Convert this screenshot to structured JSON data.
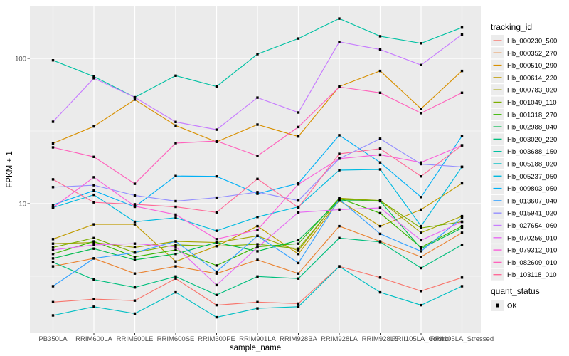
{
  "chart_data": {
    "type": "line",
    "title": "",
    "xlabel": "sample_name",
    "ylabel": "FPKM + 1",
    "y_scale": "log10",
    "ylim": [
      1.3,
      220
    ],
    "y_tick_labels": [
      "100",
      "10"
    ],
    "y_tick_values": [
      100,
      10
    ],
    "y_minor_gridlines": [
      31.623,
      3.1623
    ],
    "grid": true,
    "legend_position": "right",
    "panel_bg": "#EBEBEB",
    "grid_color": "#FFFFFF",
    "point_color": "#000000",
    "point_shape": "square",
    "legend": {
      "title": "tracking_id",
      "quant_title": "quant_status",
      "quant_items": [
        "OK"
      ]
    },
    "categories": [
      "PB350LA",
      "RRIM600LA",
      "RRIM600LE",
      "RRIM600SE",
      "RRIM600PE",
      "RRIM901LA",
      "RRIM928BA",
      "RRIM928LA",
      "RRIM928LE",
      "RRII105LA_Control",
      "RRII105LA_Stressed"
    ],
    "series": [
      {
        "name": "Hb_000230_500",
        "color": "#F8766D",
        "values": [
          2.1,
          2.2,
          2.15,
          3.05,
          2.0,
          2.1,
          2.05,
          3.7,
          3.1,
          2.5,
          3.1
        ]
      },
      {
        "name": "Hb_000352_270",
        "color": "#EA8331",
        "values": [
          3.7,
          4.2,
          3.3,
          3.7,
          3.3,
          4.1,
          3.3,
          7.0,
          5.5,
          4.3,
          6.3
        ]
      },
      {
        "name": "Hb_000510_290",
        "color": "#D89000",
        "values": [
          26,
          34,
          52,
          34.5,
          26.6,
          35,
          29,
          64,
          82,
          45,
          82
        ]
      },
      {
        "name": "Hb_000614_220",
        "color": "#C09B00",
        "values": [
          5.7,
          7.2,
          7.2,
          4.0,
          5.1,
          7.0,
          4.5,
          10.5,
          7.0,
          9.1,
          13.8
        ]
      },
      {
        "name": "Hb_000783_020",
        "color": "#A3A500",
        "values": [
          5.3,
          5.4,
          5.0,
          5.5,
          5.4,
          6.0,
          4.75,
          10.9,
          10.5,
          6.3,
          8.2
        ]
      },
      {
        "name": "Hb_001049_110",
        "color": "#7CAE00",
        "values": [
          5.0,
          5.8,
          4.6,
          5.2,
          5.1,
          5.25,
          4.9,
          10.7,
          10.5,
          6.8,
          7.5
        ]
      },
      {
        "name": "Hb_001318_270",
        "color": "#39B600",
        "values": [
          4.5,
          5.5,
          4.3,
          4.8,
          3.75,
          5.05,
          5.3,
          10.9,
          8.6,
          5.0,
          7.0
        ]
      },
      {
        "name": "Hb_002988_040",
        "color": "#00BB4E",
        "values": [
          4.2,
          4.9,
          4.1,
          4.5,
          5.4,
          4.7,
          5.6,
          10.5,
          10.4,
          4.9,
          6.8
        ]
      },
      {
        "name": "Hb_003020_220",
        "color": "#00BF7D",
        "values": [
          3.95,
          3.0,
          2.65,
          3.15,
          2.35,
          3.15,
          3.05,
          5.8,
          5.45,
          3.6,
          5.2
        ]
      },
      {
        "name": "Hb_003688_150",
        "color": "#00C1A3",
        "values": [
          97,
          75,
          54,
          76,
          64,
          107,
          137,
          188,
          142,
          127,
          163
        ]
      },
      {
        "name": "Hb_005188_020",
        "color": "#00BFC4",
        "values": [
          1.7,
          1.95,
          1.75,
          2.45,
          1.65,
          1.9,
          1.95,
          3.7,
          2.45,
          2.0,
          2.7
        ]
      },
      {
        "name": "Hb_005237_050",
        "color": "#00BAE0",
        "values": [
          9.4,
          11.5,
          7.5,
          8.0,
          6.5,
          8.1,
          9.5,
          17.0,
          17.2,
          7.0,
          17.9
        ]
      },
      {
        "name": "Hb_009803_050",
        "color": "#00B0F6",
        "values": [
          9.8,
          12.3,
          9.5,
          15.5,
          15.4,
          11.7,
          13.8,
          29.6,
          19.2,
          11.1,
          29.2
        ]
      },
      {
        "name": "Hb_013607_040",
        "color": "#35A2FF",
        "values": [
          2.7,
          4.2,
          4.6,
          5.5,
          3.4,
          6.0,
          3.9,
          10.7,
          6.2,
          4.7,
          8.0
        ]
      },
      {
        "name": "Hb_015941_020",
        "color": "#9590FF",
        "values": [
          13.0,
          13.4,
          11.4,
          10.4,
          11.0,
          12.0,
          10.5,
          20.4,
          28.0,
          18.7,
          17.9
        ]
      },
      {
        "name": "Hb_027654_060",
        "color": "#C77CFF",
        "values": [
          36.6,
          73,
          54,
          36.5,
          32.3,
          53.7,
          42.4,
          130,
          115,
          90,
          146
        ]
      },
      {
        "name": "Hb_070256_010",
        "color": "#E76BF3",
        "values": [
          4.8,
          5.2,
          5.3,
          5.05,
          2.75,
          5.0,
          8.7,
          9.1,
          9.35,
          5.6,
          7.5
        ]
      },
      {
        "name": "Hb_079312_010",
        "color": "#FA62DB",
        "values": [
          9.4,
          15.2,
          9.6,
          8.4,
          5.7,
          6.6,
          13.6,
          20.4,
          21.7,
          19.2,
          25.2
        ]
      },
      {
        "name": "Hb_082609_010",
        "color": "#FF62BC",
        "values": [
          24.4,
          21,
          13.7,
          26.1,
          27,
          21.3,
          33.7,
          63.5,
          58,
          42,
          58
        ]
      },
      {
        "name": "Hb_103118_010",
        "color": "#FF6A98",
        "values": [
          14.7,
          10.2,
          9.9,
          9.5,
          8.7,
          14.8,
          9.4,
          22.0,
          23.9,
          15.4,
          25.2
        ]
      }
    ]
  }
}
